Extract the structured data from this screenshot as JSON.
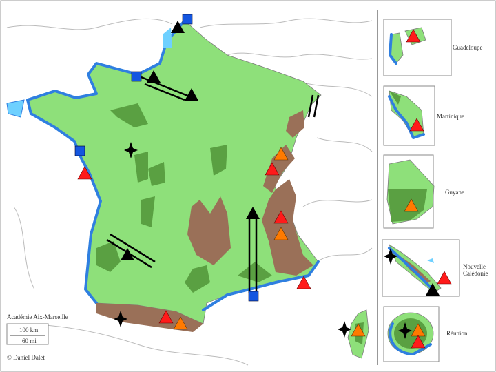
{
  "map": {
    "attribution": "Académie Aix-Marseille",
    "scale": {
      "km": "100 km",
      "mi": "60 mi"
    },
    "credit": "© Daniel Dalet",
    "overseas": {
      "guadeloupe": "Guadeloupe",
      "martinique": "Martinique",
      "guyane": "Guyane",
      "nouvelle_caledonie": [
        "Nouvelle",
        "Calédonie"
      ],
      "reunion": "Réunion"
    }
  }
}
